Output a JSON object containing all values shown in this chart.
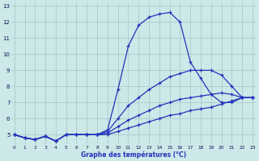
{
  "xlabel": "Graphe des températures (°C)",
  "bg_color": "#cce8e8",
  "grid_color": "#aacccc",
  "line_color": "#2233bb",
  "x": [
    0,
    1,
    2,
    3,
    4,
    5,
    6,
    7,
    8,
    9,
    10,
    11,
    12,
    13,
    14,
    15,
    16,
    17,
    18,
    19,
    20,
    21,
    22,
    23
  ],
  "line1": [
    5.0,
    4.8,
    4.7,
    4.9,
    4.6,
    5.0,
    5.0,
    5.0,
    5.0,
    5.0,
    5.2,
    5.4,
    5.6,
    5.8,
    6.0,
    6.2,
    6.3,
    6.5,
    6.6,
    6.7,
    6.9,
    7.1,
    7.3,
    7.3
  ],
  "line2": [
    5.0,
    4.8,
    4.7,
    4.9,
    4.6,
    5.0,
    5.0,
    5.0,
    5.0,
    5.1,
    5.5,
    5.9,
    6.2,
    6.5,
    6.8,
    7.0,
    7.2,
    7.3,
    7.4,
    7.5,
    7.6,
    7.5,
    7.3,
    7.3
  ],
  "line3": [
    5.0,
    4.8,
    4.7,
    4.9,
    4.6,
    5.0,
    5.0,
    5.0,
    5.0,
    5.2,
    6.0,
    6.8,
    7.3,
    7.8,
    8.2,
    8.6,
    8.8,
    9.0,
    9.0,
    9.0,
    8.7,
    8.0,
    7.3,
    7.3
  ],
  "line4": [
    5.0,
    4.8,
    4.7,
    4.9,
    4.6,
    5.0,
    5.0,
    5.0,
    5.0,
    5.3,
    7.8,
    10.5,
    11.8,
    12.3,
    12.5,
    12.6,
    12.0,
    9.5,
    8.5,
    7.5,
    7.0,
    7.0,
    7.3,
    7.3
  ],
  "ylim": [
    4.4,
    13.2
  ],
  "yticks": [
    5,
    6,
    7,
    8,
    9,
    10,
    11,
    12,
    13
  ],
  "xticks": [
    0,
    1,
    2,
    3,
    4,
    5,
    6,
    7,
    8,
    9,
    10,
    11,
    12,
    13,
    14,
    15,
    16,
    17,
    18,
    19,
    20,
    21,
    22,
    23
  ]
}
